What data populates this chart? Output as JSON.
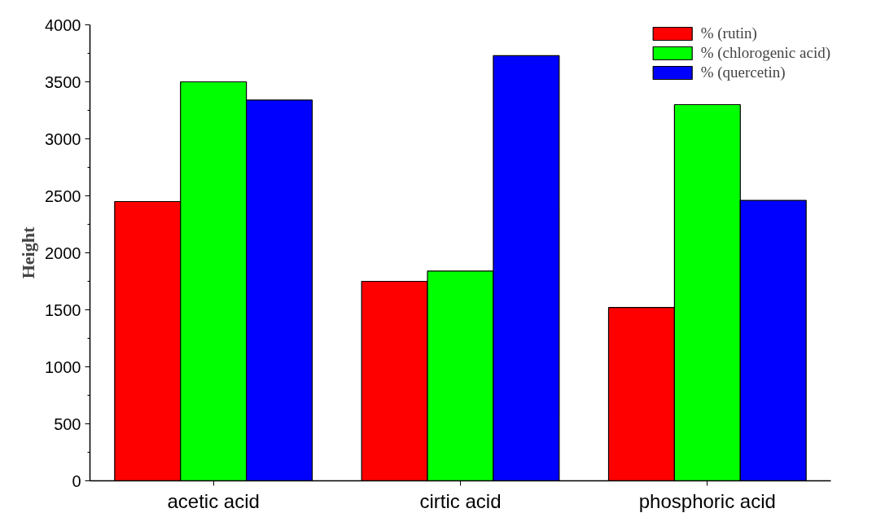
{
  "chart_data": {
    "type": "bar",
    "ylabel": "Height",
    "categories": [
      "acetic acid",
      "cirtic acid",
      "phosphoric acid"
    ],
    "series": [
      {
        "name": "% (rutin)",
        "color": "#ff0000",
        "values": [
          2450,
          1750,
          1520
        ]
      },
      {
        "name": "% (chlorogenic acid)",
        "color": "#00ff00",
        "values": [
          3500,
          1840,
          3300
        ]
      },
      {
        "name": "% (quercetin)",
        "color": "#0000ff",
        "values": [
          3340,
          3730,
          2460
        ]
      }
    ],
    "ylim": [
      0,
      4000
    ],
    "yticks": [
      0,
      500,
      1000,
      1500,
      2000,
      2500,
      3000,
      3500,
      4000
    ],
    "grid": false,
    "legend": "top right"
  }
}
